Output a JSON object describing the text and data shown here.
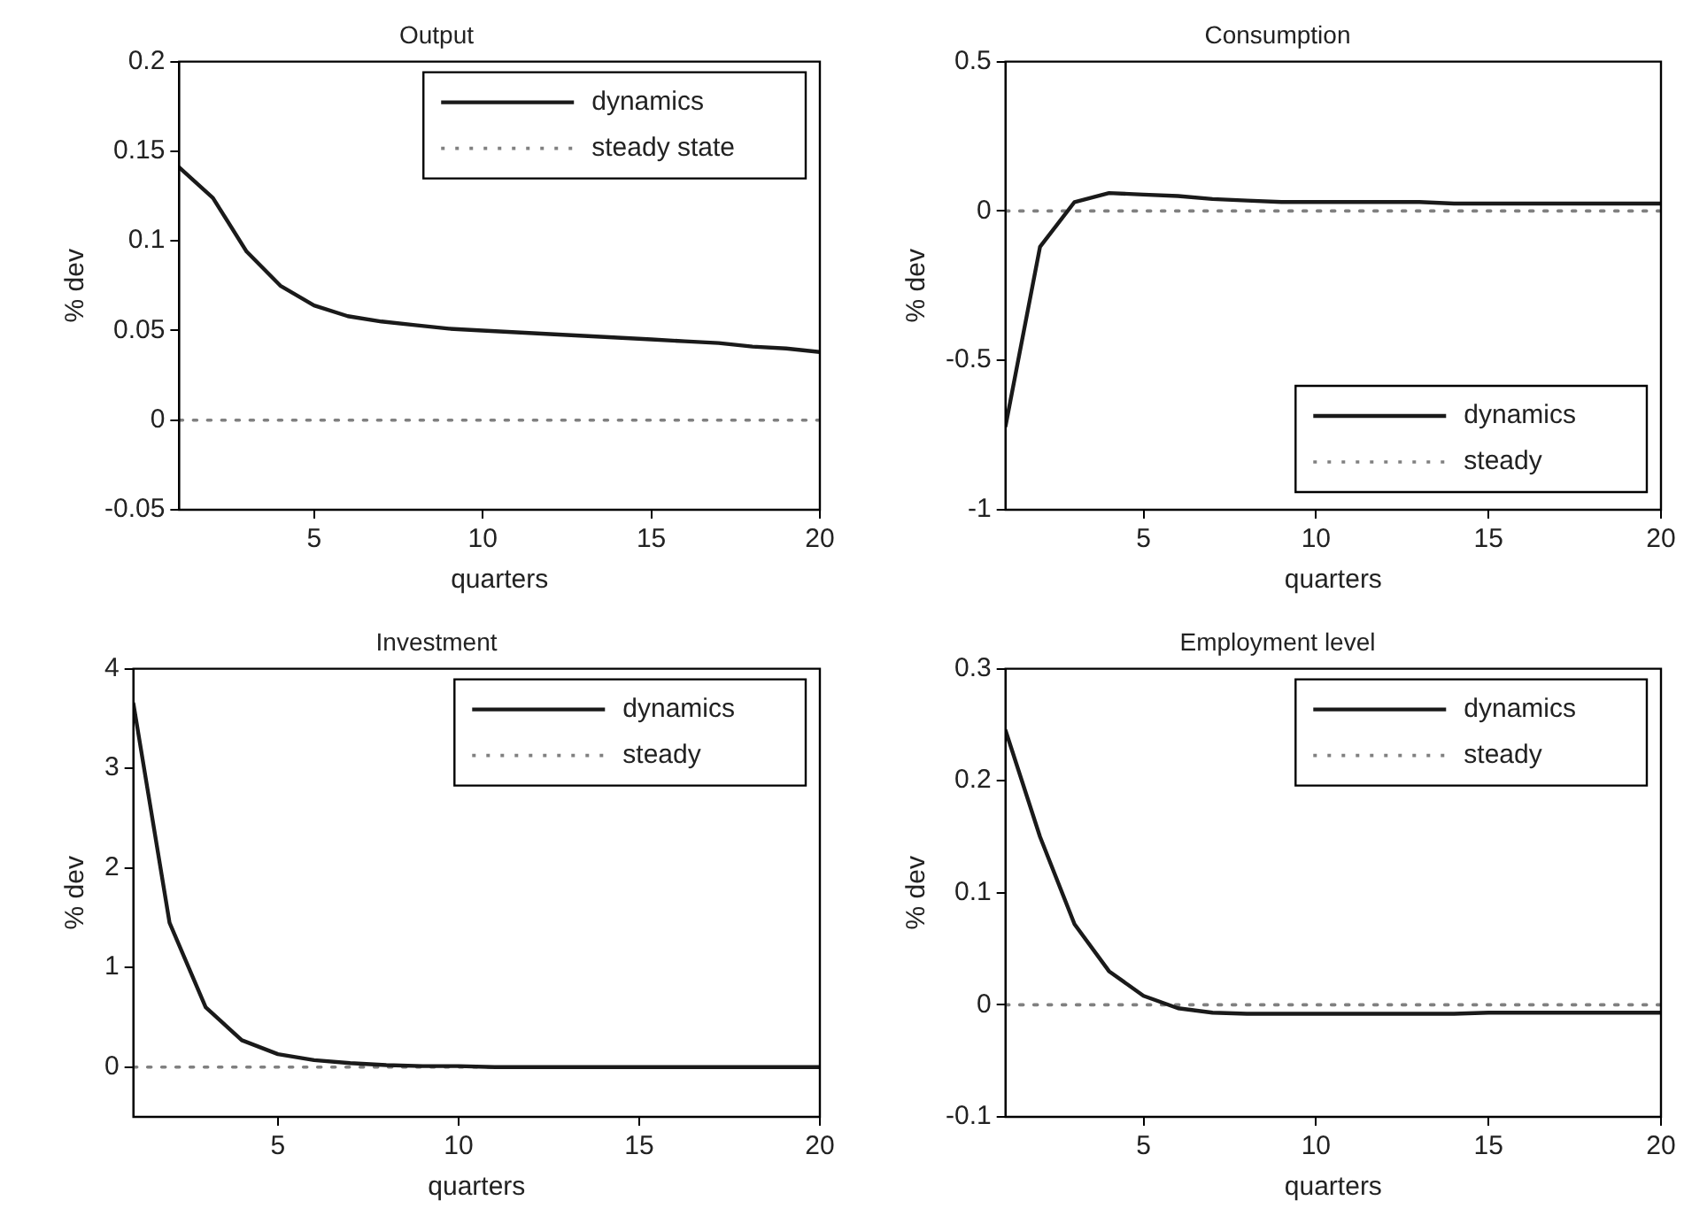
{
  "chart_data": [
    {
      "type": "line",
      "title": "Output",
      "xlabel": "quarters",
      "ylabel": "% dev",
      "x": [
        1,
        2,
        3,
        4,
        5,
        6,
        7,
        8,
        9,
        10,
        11,
        12,
        13,
        14,
        15,
        16,
        17,
        18,
        19,
        20
      ],
      "xlim": [
        1,
        20
      ],
      "xticks": [
        5,
        10,
        15,
        20
      ],
      "ylim": [
        -0.05,
        0.2
      ],
      "yticks": [
        -0.05,
        0,
        0.05,
        0.1,
        0.15,
        0.2
      ],
      "grid": false,
      "legend": "top right",
      "marker": "none",
      "series": [
        {
          "name": "dynamics",
          "color": "#1a1a1a",
          "line_style": "solid",
          "values": [
            0.141,
            0.124,
            0.094,
            0.075,
            0.064,
            0.058,
            0.055,
            0.053,
            0.051,
            0.05,
            0.049,
            0.048,
            0.047,
            0.046,
            0.045,
            0.044,
            0.043,
            0.041,
            0.04,
            0.038
          ]
        },
        {
          "name": "steady state",
          "color": "#808080",
          "line_style": "dotted",
          "values": [
            0,
            0,
            0,
            0,
            0,
            0,
            0,
            0,
            0,
            0,
            0,
            0,
            0,
            0,
            0,
            0,
            0,
            0,
            0,
            0
          ]
        }
      ]
    },
    {
      "type": "line",
      "title": "Consumption",
      "xlabel": "quarters",
      "ylabel": "% dev",
      "x": [
        1,
        2,
        3,
        4,
        5,
        6,
        7,
        8,
        9,
        10,
        11,
        12,
        13,
        14,
        15,
        16,
        17,
        18,
        19,
        20
      ],
      "xlim": [
        1,
        20
      ],
      "xticks": [
        5,
        10,
        15,
        20
      ],
      "ylim": [
        -1,
        0.5
      ],
      "yticks": [
        -1,
        -0.5,
        0,
        0.5
      ],
      "grid": false,
      "legend": "bottom right",
      "marker": "none",
      "series": [
        {
          "name": "dynamics",
          "color": "#1a1a1a",
          "line_style": "solid",
          "values": [
            -0.72,
            -0.12,
            0.03,
            0.06,
            0.055,
            0.05,
            0.04,
            0.035,
            0.03,
            0.03,
            0.03,
            0.03,
            0.03,
            0.025,
            0.025,
            0.025,
            0.025,
            0.025,
            0.025,
            0.025
          ]
        },
        {
          "name": "steady",
          "color": "#808080",
          "line_style": "dotted",
          "values": [
            0,
            0,
            0,
            0,
            0,
            0,
            0,
            0,
            0,
            0,
            0,
            0,
            0,
            0,
            0,
            0,
            0,
            0,
            0,
            0
          ]
        }
      ]
    },
    {
      "type": "line",
      "title": "Investment",
      "xlabel": "quarters",
      "ylabel": "% dev",
      "x": [
        1,
        2,
        3,
        4,
        5,
        6,
        7,
        8,
        9,
        10,
        11,
        12,
        13,
        14,
        15,
        16,
        17,
        18,
        19,
        20
      ],
      "xlim": [
        1,
        20
      ],
      "xticks": [
        5,
        10,
        15,
        20
      ],
      "ylim": [
        -0.5,
        4
      ],
      "yticks": [
        0,
        1,
        2,
        3,
        4
      ],
      "grid": false,
      "legend": "top right",
      "marker": "none",
      "series": [
        {
          "name": "dynamics",
          "color": "#1a1a1a",
          "line_style": "solid",
          "values": [
            3.65,
            1.45,
            0.6,
            0.27,
            0.13,
            0.07,
            0.04,
            0.02,
            0.01,
            0.01,
            0,
            0,
            0,
            0,
            0,
            0,
            0,
            0,
            0,
            0
          ]
        },
        {
          "name": "steady",
          "color": "#808080",
          "line_style": "dotted",
          "values": [
            0,
            0,
            0,
            0,
            0,
            0,
            0,
            0,
            0,
            0,
            0,
            0,
            0,
            0,
            0,
            0,
            0,
            0,
            0,
            0
          ]
        }
      ]
    },
    {
      "type": "line",
      "title": "Employment level",
      "xlabel": "quarters",
      "ylabel": "% dev",
      "x": [
        1,
        2,
        3,
        4,
        5,
        6,
        7,
        8,
        9,
        10,
        11,
        12,
        13,
        14,
        15,
        16,
        17,
        18,
        19,
        20
      ],
      "xlim": [
        1,
        20
      ],
      "xticks": [
        5,
        10,
        15,
        20
      ],
      "ylim": [
        -0.1,
        0.3
      ],
      "yticks": [
        -0.1,
        0,
        0.1,
        0.2,
        0.3
      ],
      "grid": false,
      "legend": "top right",
      "marker": "none",
      "series": [
        {
          "name": "dynamics",
          "color": "#1a1a1a",
          "line_style": "solid",
          "values": [
            0.245,
            0.15,
            0.072,
            0.03,
            0.008,
            -0.003,
            -0.007,
            -0.008,
            -0.008,
            -0.008,
            -0.008,
            -0.008,
            -0.008,
            -0.008,
            -0.007,
            -0.007,
            -0.007,
            -0.007,
            -0.007,
            -0.007
          ]
        },
        {
          "name": "steady",
          "color": "#808080",
          "line_style": "dotted",
          "values": [
            0,
            0,
            0,
            0,
            0,
            0,
            0,
            0,
            0,
            0,
            0,
            0,
            0,
            0,
            0,
            0,
            0,
            0,
            0,
            0
          ]
        }
      ]
    }
  ]
}
